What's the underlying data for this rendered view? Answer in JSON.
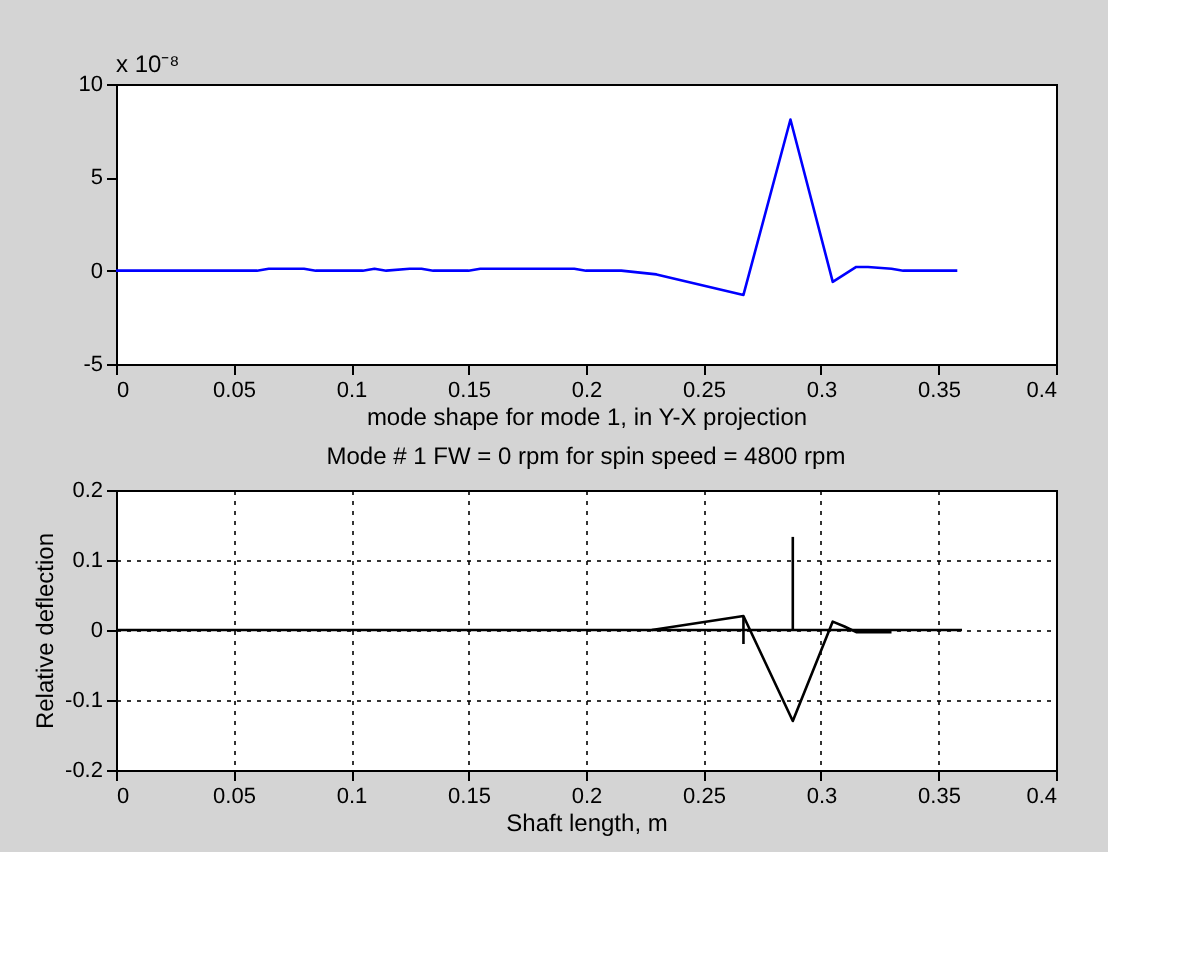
{
  "chart_data": [
    {
      "type": "line",
      "xlabel": "mode shape for mode 1, in Y-X projection",
      "annotations": [
        "x 10⁻⁸"
      ],
      "xlim": [
        0,
        0.4
      ],
      "xticks": [
        0,
        0.05,
        0.1,
        0.15,
        0.2,
        0.25,
        0.3,
        0.35,
        0.4
      ],
      "ylim": [
        -5,
        10
      ],
      "yticks": [
        -5,
        0,
        5,
        10
      ],
      "grid": false,
      "series": [
        {
          "color": "#0000ff",
          "x": [
            0,
            0.06,
            0.065,
            0.08,
            0.085,
            0.105,
            0.11,
            0.115,
            0.125,
            0.13,
            0.135,
            0.15,
            0.155,
            0.195,
            0.2,
            0.215,
            0.23,
            0.267,
            0.287,
            0.305,
            0.315,
            0.32,
            0.33,
            0.335,
            0.358
          ],
          "values": [
            0,
            0,
            0.1,
            0.1,
            0,
            0,
            0.1,
            0,
            0.1,
            0.1,
            0,
            0,
            0.1,
            0.1,
            0,
            0,
            -0.2,
            -1.3,
            8.1,
            -0.6,
            0.2,
            0.2,
            0.1,
            0,
            0
          ]
        }
      ]
    },
    {
      "type": "line",
      "title": "Mode # 1 FW   = 0 rpm for spin speed = 4800 rpm",
      "xlabel": "Shaft length, m",
      "ylabel": "Relative deflection",
      "xlim": [
        0,
        0.4
      ],
      "xticks": [
        0,
        0.05,
        0.1,
        0.15,
        0.2,
        0.25,
        0.3,
        0.35,
        0.4
      ],
      "ylim": [
        -0.2,
        0.2
      ],
      "yticks": [
        -0.2,
        -0.1,
        0,
        0.1,
        0.2
      ],
      "grid": true,
      "series": [
        {
          "color": "#000000",
          "x": [
            0,
            0.36
          ],
          "values": [
            0,
            0
          ]
        },
        {
          "color": "#000000",
          "x": [
            0.228,
            0.267,
            0.288,
            0.305,
            0.31,
            0.315,
            0.33
          ],
          "values": [
            0,
            0.02,
            -0.13,
            0.012,
            0.005,
            -0.003,
            -0.003
          ]
        },
        {
          "color": "#000000",
          "x": [
            0.288,
            0.288
          ],
          "values": [
            0,
            0.133
          ]
        },
        {
          "color": "#000000",
          "x": [
            0.267,
            0.267
          ],
          "values": [
            0.02,
            -0.02
          ]
        }
      ]
    }
  ]
}
